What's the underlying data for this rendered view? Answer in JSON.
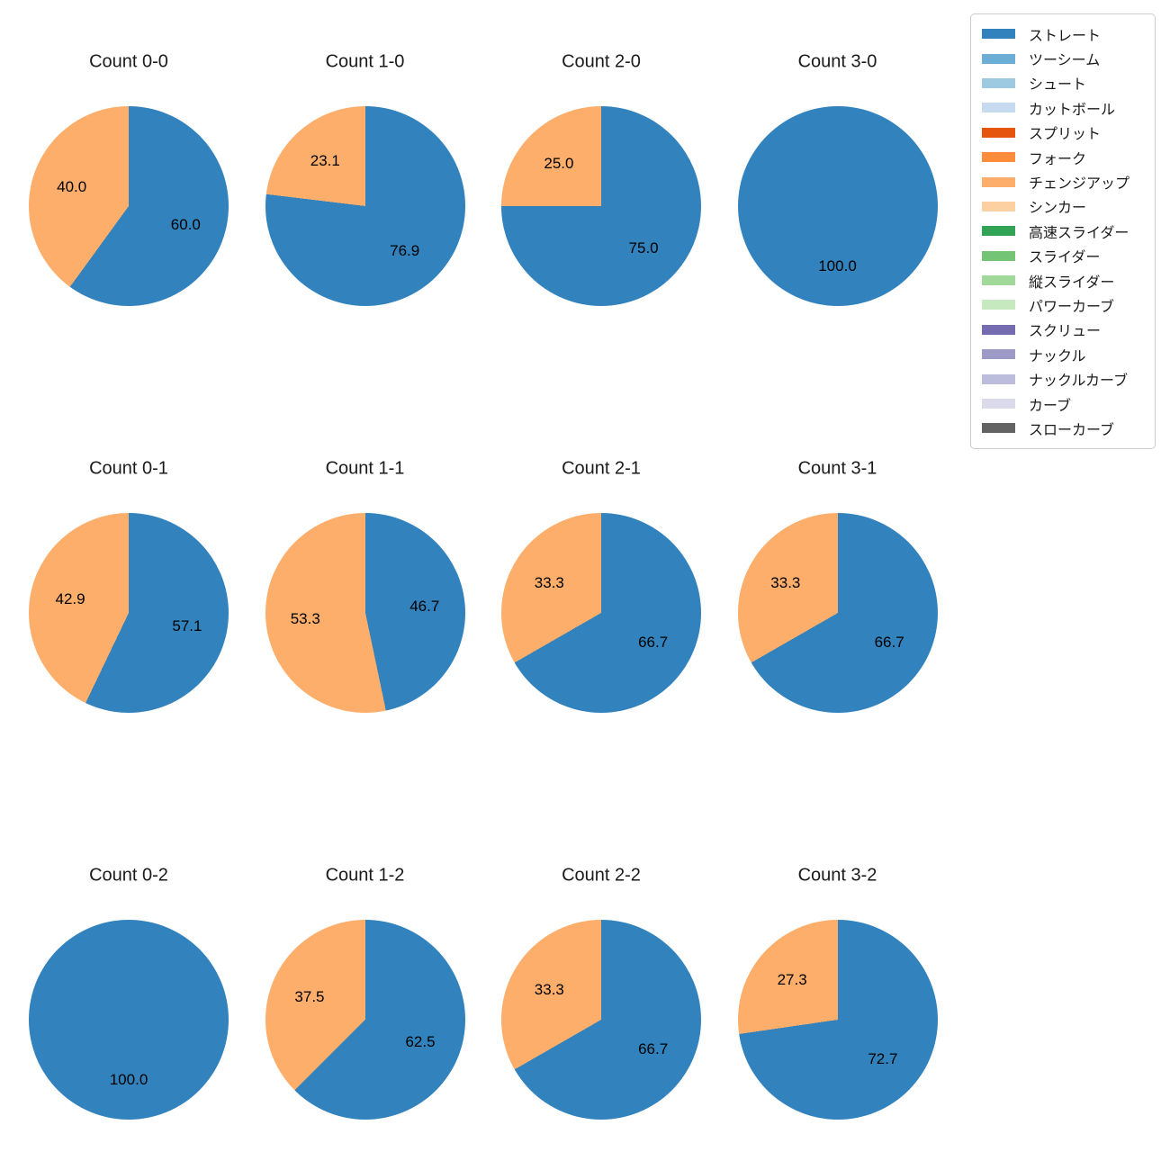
{
  "figure": {
    "background": "#ffffff",
    "text_color": "#1a1a1a"
  },
  "legend": {
    "items": [
      {
        "label": "ストレート",
        "color": "#3182bd"
      },
      {
        "label": "ツーシーム",
        "color": "#6baed6"
      },
      {
        "label": "シュート",
        "color": "#9ecae1"
      },
      {
        "label": "カットボール",
        "color": "#c6dbef"
      },
      {
        "label": "スプリット",
        "color": "#e6550d"
      },
      {
        "label": "フォーク",
        "color": "#fd8d3c"
      },
      {
        "label": "チェンジアップ",
        "color": "#fdae6b"
      },
      {
        "label": "シンカー",
        "color": "#fdd0a2"
      },
      {
        "label": "高速スライダー",
        "color": "#31a354"
      },
      {
        "label": "スライダー",
        "color": "#74c476"
      },
      {
        "label": "縦スライダー",
        "color": "#a1d99b"
      },
      {
        "label": "パワーカーブ",
        "color": "#c7e9c0"
      },
      {
        "label": "スクリュー",
        "color": "#756bb1"
      },
      {
        "label": "ナックル",
        "color": "#9e9ac8"
      },
      {
        "label": "ナックルカーブ",
        "color": "#bcbddc"
      },
      {
        "label": "カーブ",
        "color": "#dadaeb"
      },
      {
        "label": "スローカーブ",
        "color": "#636363"
      }
    ]
  },
  "chart_data": {
    "type": "pie",
    "grid": {
      "rows": 3,
      "cols": 4
    },
    "start_angle": "top",
    "direction": "clockwise",
    "label_distance": 0.6,
    "legend_position": "upper right",
    "charts": [
      {
        "title": "Count 0-0",
        "slices": [
          {
            "label": "ストレート",
            "color": "#3182bd",
            "value": 60.0,
            "pct": "60.0"
          },
          {
            "label": "チェンジアップ",
            "color": "#fdae6b",
            "value": 40.0,
            "pct": "40.0"
          }
        ]
      },
      {
        "title": "Count 1-0",
        "slices": [
          {
            "label": "ストレート",
            "color": "#3182bd",
            "value": 76.9,
            "pct": "76.9"
          },
          {
            "label": "チェンジアップ",
            "color": "#fdae6b",
            "value": 23.1,
            "pct": "23.1"
          }
        ]
      },
      {
        "title": "Count 2-0",
        "slices": [
          {
            "label": "ストレート",
            "color": "#3182bd",
            "value": 75.0,
            "pct": "75.0"
          },
          {
            "label": "チェンジアップ",
            "color": "#fdae6b",
            "value": 25.0,
            "pct": "25.0"
          }
        ]
      },
      {
        "title": "Count 3-0",
        "slices": [
          {
            "label": "ストレート",
            "color": "#3182bd",
            "value": 100.0,
            "pct": "100.0"
          }
        ]
      },
      {
        "title": "Count 0-1",
        "slices": [
          {
            "label": "ストレート",
            "color": "#3182bd",
            "value": 57.1,
            "pct": "57.1"
          },
          {
            "label": "チェンジアップ",
            "color": "#fdae6b",
            "value": 42.9,
            "pct": "42.9"
          }
        ]
      },
      {
        "title": "Count 1-1",
        "slices": [
          {
            "label": "ストレート",
            "color": "#3182bd",
            "value": 46.7,
            "pct": "46.7"
          },
          {
            "label": "チェンジアップ",
            "color": "#fdae6b",
            "value": 53.3,
            "pct": "53.3"
          }
        ]
      },
      {
        "title": "Count 2-1",
        "slices": [
          {
            "label": "ストレート",
            "color": "#3182bd",
            "value": 66.7,
            "pct": "66.7"
          },
          {
            "label": "チェンジアップ",
            "color": "#fdae6b",
            "value": 33.3,
            "pct": "33.3"
          }
        ]
      },
      {
        "title": "Count 3-1",
        "slices": [
          {
            "label": "ストレート",
            "color": "#3182bd",
            "value": 66.7,
            "pct": "66.7"
          },
          {
            "label": "チェンジアップ",
            "color": "#fdae6b",
            "value": 33.3,
            "pct": "33.3"
          }
        ]
      },
      {
        "title": "Count 0-2",
        "slices": [
          {
            "label": "ストレート",
            "color": "#3182bd",
            "value": 100.0,
            "pct": "100.0"
          }
        ]
      },
      {
        "title": "Count 1-2",
        "slices": [
          {
            "label": "ストレート",
            "color": "#3182bd",
            "value": 62.5,
            "pct": "62.5"
          },
          {
            "label": "チェンジアップ",
            "color": "#fdae6b",
            "value": 37.5,
            "pct": "37.5"
          }
        ]
      },
      {
        "title": "Count 2-2",
        "slices": [
          {
            "label": "ストレート",
            "color": "#3182bd",
            "value": 66.7,
            "pct": "66.7"
          },
          {
            "label": "チェンジアップ",
            "color": "#fdae6b",
            "value": 33.3,
            "pct": "33.3"
          }
        ]
      },
      {
        "title": "Count 3-2",
        "slices": [
          {
            "label": "ストレート",
            "color": "#3182bd",
            "value": 72.7,
            "pct": "72.7"
          },
          {
            "label": "チェンジアップ",
            "color": "#fdae6b",
            "value": 27.3,
            "pct": "27.3"
          }
        ]
      }
    ]
  }
}
